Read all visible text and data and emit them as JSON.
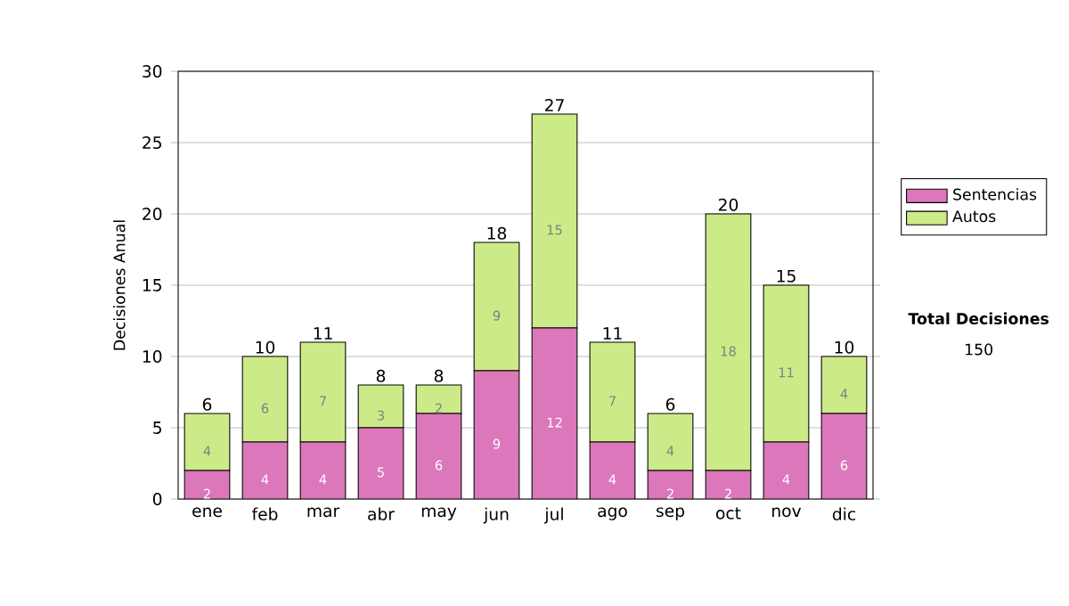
{
  "chart_data": {
    "type": "bar",
    "stacked": true,
    "ylabel": "Decisiones Anual",
    "categories": [
      "ene",
      "feb",
      "mar",
      "abr",
      "may",
      "jun",
      "jul",
      "ago",
      "sep",
      "oct",
      "nov",
      "dic"
    ],
    "series": [
      {
        "name": "Sentencias",
        "color": "#dd77bb",
        "values": [
          2,
          4,
          4,
          5,
          6,
          9,
          12,
          4,
          2,
          2,
          4,
          6
        ]
      },
      {
        "name": "Autos",
        "color": "#cceb88",
        "values": [
          4,
          6,
          7,
          3,
          2,
          9,
          15,
          7,
          4,
          18,
          11,
          4
        ]
      }
    ],
    "totals": [
      "6",
      "10",
      "11",
      "8",
      "8",
      "18",
      "27",
      "11",
      "6",
      "20",
      "15",
      "10"
    ],
    "ylim": [
      0,
      30
    ],
    "yticks": [
      0,
      5,
      10,
      15,
      20,
      25,
      30
    ],
    "grid": "y",
    "legend": "right",
    "data_labels": true,
    "annotations": [
      "**Total Decisiones**",
      "150"
    ]
  }
}
